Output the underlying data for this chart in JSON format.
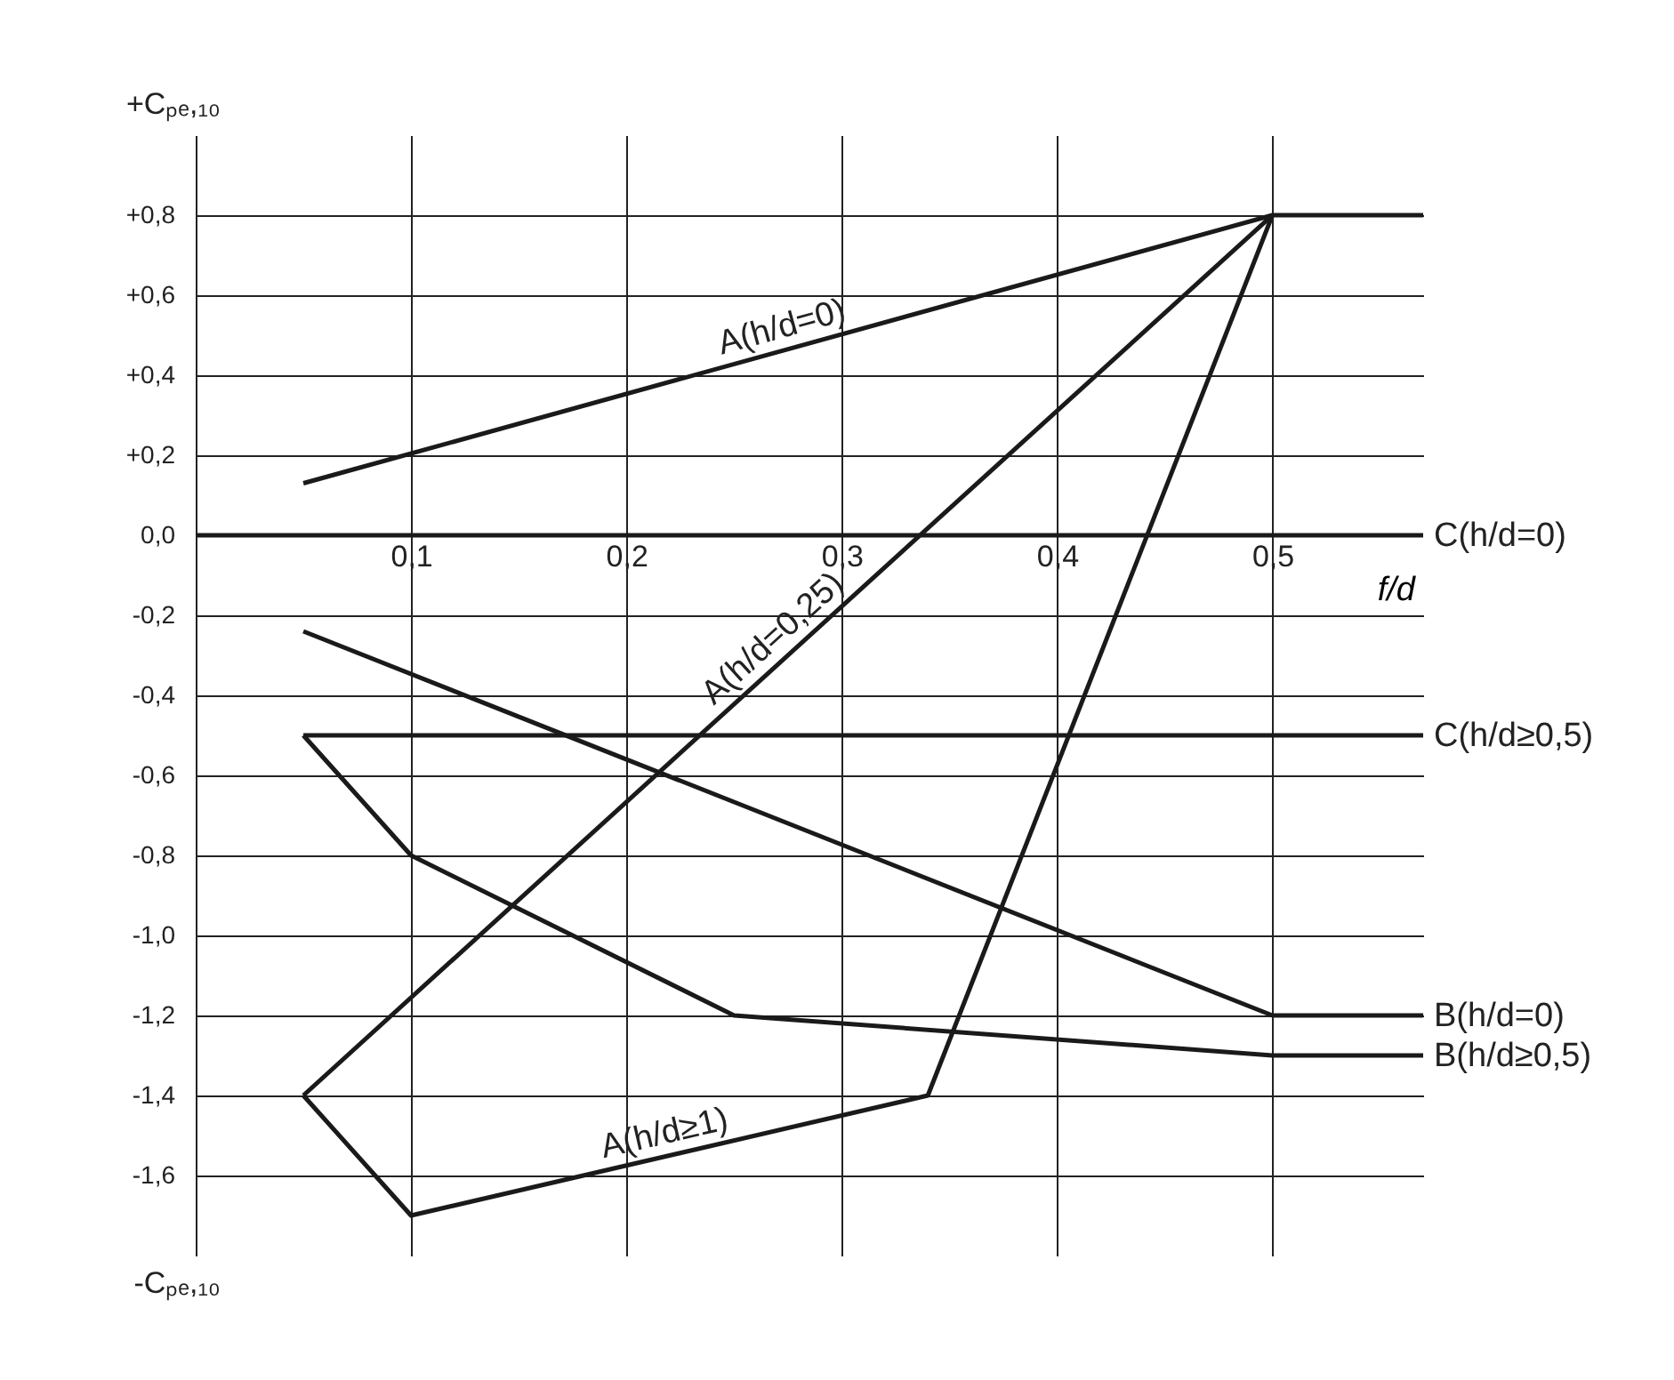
{
  "chart_data": {
    "type": "line",
    "xlabel": "f/d",
    "ylabel": "+Cₚₑ,₁₀",
    "annotations": [
      "-Cₚₑ,₁₀"
    ],
    "xlim": [
      0,
      0.57
    ],
    "ylim": [
      -1.8,
      1.0
    ],
    "xticks": [
      {
        "value": 0.1,
        "label": "0,1"
      },
      {
        "value": 0.2,
        "label": "0,2"
      },
      {
        "value": 0.3,
        "label": "0,3"
      },
      {
        "value": 0.4,
        "label": "0,4"
      },
      {
        "value": 0.5,
        "label": "0,5"
      }
    ],
    "yticks": [
      {
        "value": 0.8,
        "label": "+0,8"
      },
      {
        "value": 0.6,
        "label": "+0,6"
      },
      {
        "value": 0.4,
        "label": "+0,4"
      },
      {
        "value": 0.2,
        "label": "+0,2"
      },
      {
        "value": 0,
        "label": "0,0"
      },
      {
        "value": -0.2,
        "label": "-0,2"
      },
      {
        "value": -0.4,
        "label": "-0,4"
      },
      {
        "value": -0.6,
        "label": "-0,6"
      },
      {
        "value": -0.8,
        "label": "-0,8"
      },
      {
        "value": -1.0,
        "label": "-1,0"
      },
      {
        "value": -1.2,
        "label": "-1,2"
      },
      {
        "value": -1.4,
        "label": "-1,4"
      },
      {
        "value": -1.6,
        "label": "-1,6"
      }
    ],
    "grid": true,
    "line_style": "solid",
    "series": [
      {
        "name": "A(h/d=0)",
        "color": "#1a1a1a",
        "x": [
          0.05,
          0.5,
          0.57
        ],
        "values": [
          0.13,
          0.8,
          0.8
        ]
      },
      {
        "name": "A(h/d=0,25)",
        "color": "#1a1a1a",
        "x": [
          0.05,
          0.5
        ],
        "values": [
          -1.4,
          0.8
        ]
      },
      {
        "name": "A(h/d≥1)",
        "color": "#1a1a1a",
        "x": [
          0.05,
          0.1,
          0.34,
          0.5
        ],
        "values": [
          -1.4,
          -1.7,
          -1.4,
          0.8
        ]
      },
      {
        "name": "C(h/d=0)",
        "color": "#1a1a1a",
        "x": [
          0,
          0.57
        ],
        "values": [
          0,
          0
        ]
      },
      {
        "name": "C(h/d≥0,5)",
        "color": "#1a1a1a",
        "x": [
          0.05,
          0.57
        ],
        "values": [
          -0.5,
          -0.5
        ]
      },
      {
        "name": "B(h/d=0)",
        "color": "#1a1a1a",
        "x": [
          0.05,
          0.5,
          0.57
        ],
        "values": [
          -0.24,
          -1.2,
          -1.2
        ]
      },
      {
        "name": "B(h/d≥0,5)",
        "color": "#1a1a1a",
        "x": [
          0.05,
          0.1,
          0.25,
          0.5,
          0.57
        ],
        "values": [
          -0.5,
          -0.8,
          -1.2,
          -1.3,
          -1.3
        ]
      }
    ]
  }
}
